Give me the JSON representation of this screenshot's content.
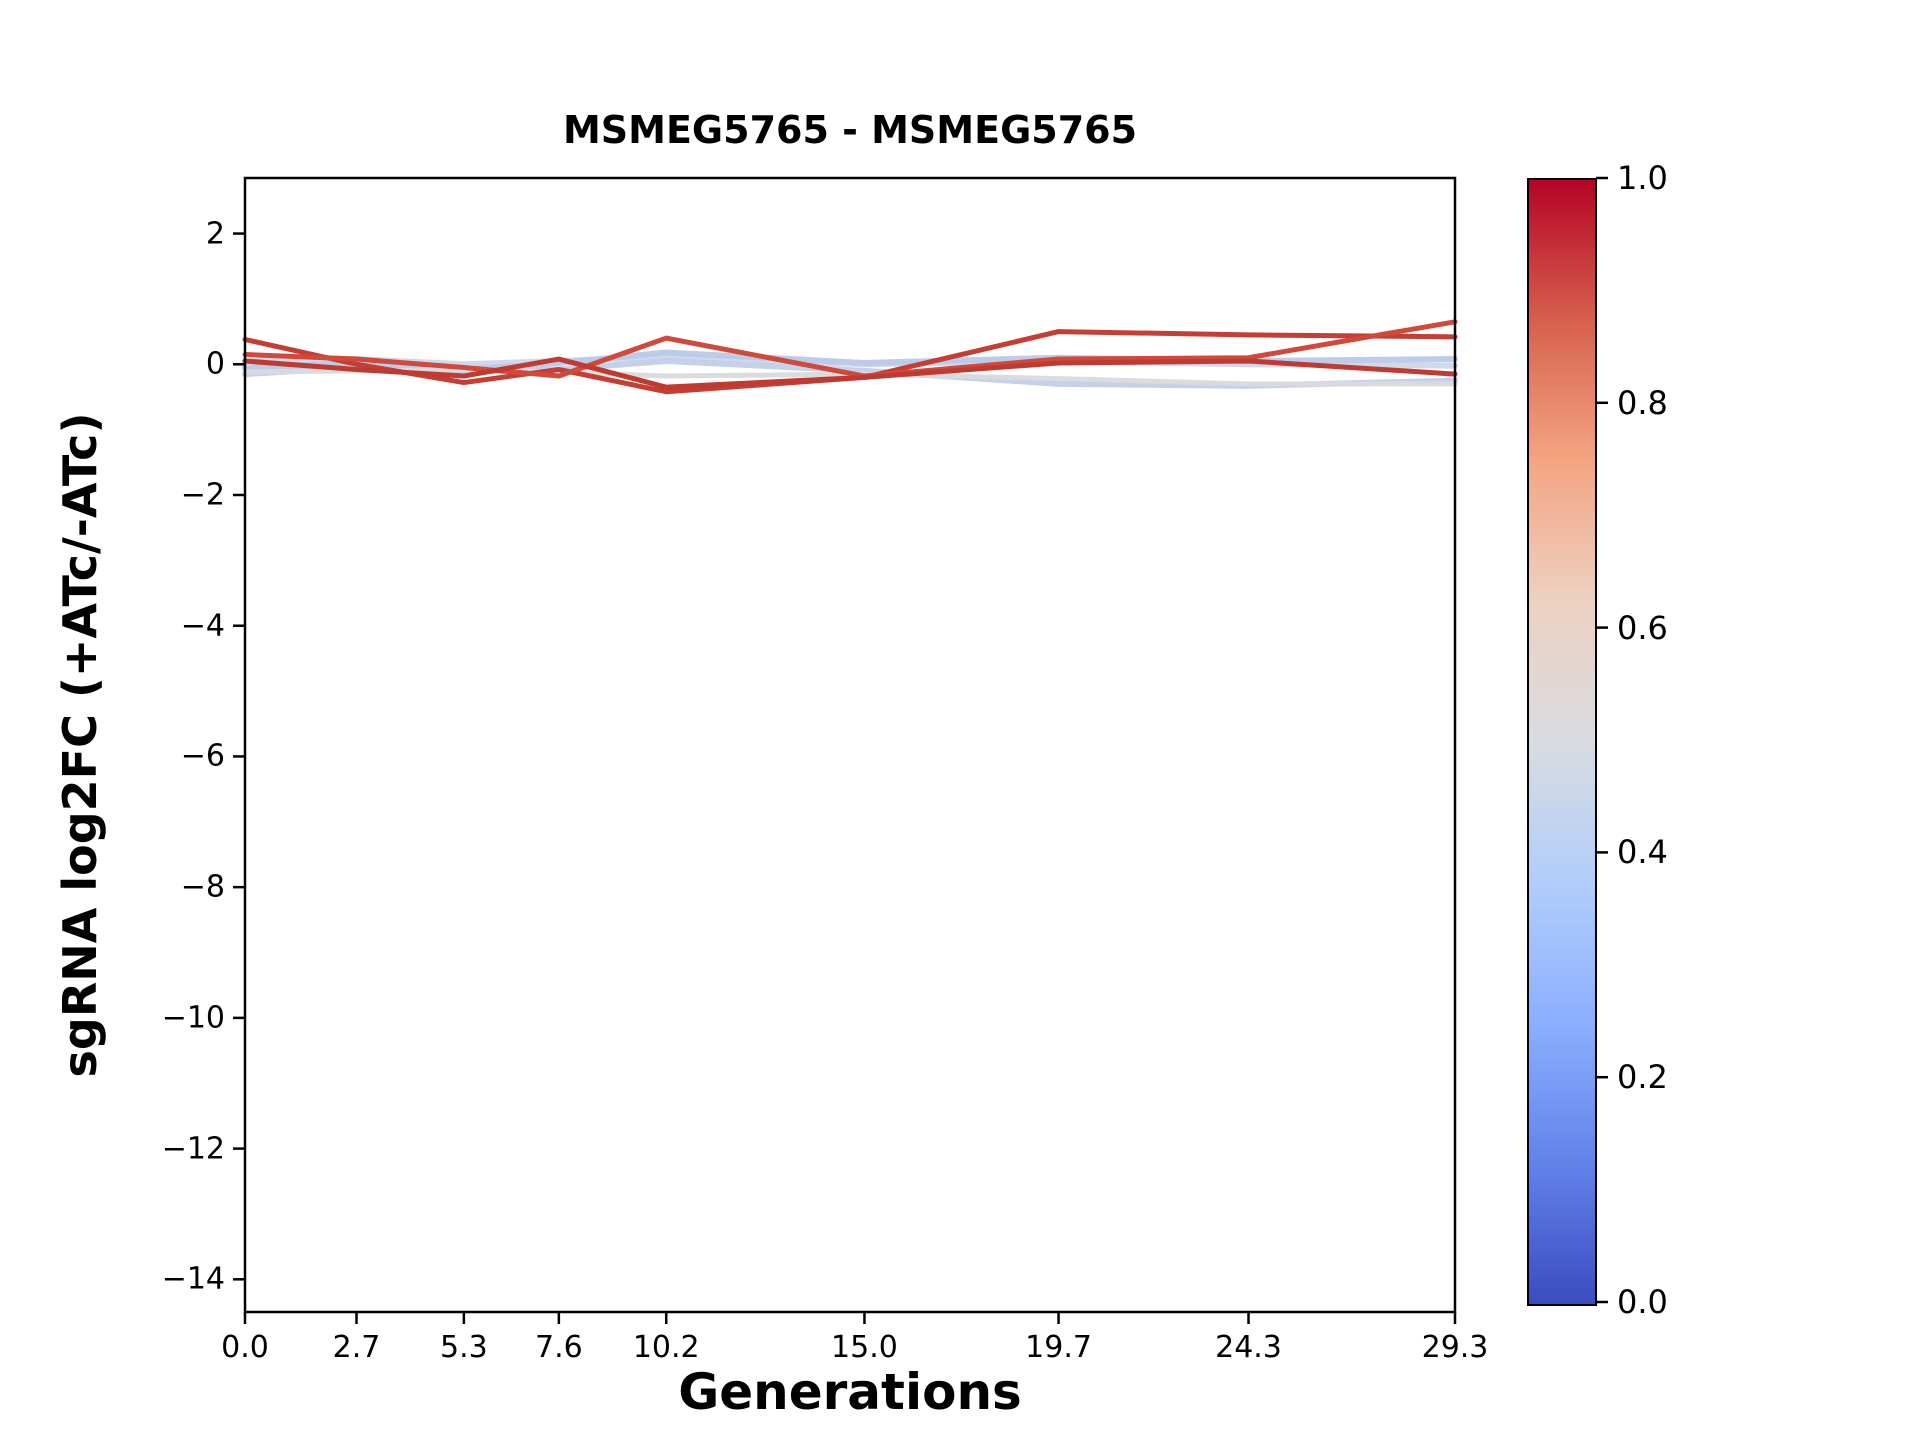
{
  "chart_data": {
    "type": "line",
    "title": "MSMEG5765 - MSMEG5765",
    "xlabel": "Generations",
    "ylabel": "sgRNA log2FC (+ATc/-ATc)",
    "x": [
      0.0,
      2.7,
      5.3,
      7.6,
      10.2,
      15.0,
      19.7,
      24.3,
      29.3
    ],
    "xtick_labels": [
      "0.0",
      "2.7",
      "5.3",
      "7.6",
      "10.2",
      "15.0",
      "19.7",
      "24.3",
      "29.3"
    ],
    "yticks": [
      2,
      0,
      -2,
      -4,
      -6,
      -8,
      -10,
      -12,
      -14
    ],
    "ytick_labels": [
      "2",
      "0",
      "−2",
      "−4",
      "−6",
      "−8",
      "−10",
      "−12",
      "−14"
    ],
    "xlim": [
      0.0,
      29.3
    ],
    "ylim": [
      -14.5,
      2.85
    ],
    "grid": false,
    "legend": "none",
    "series": [
      {
        "name": "sgrna-blue-1",
        "colormap_value": 0.45,
        "color": "#ccd6ec",
        "width": 6,
        "opacity": 0.95,
        "y": [
          0.05,
          0.08,
          0.0,
          0.05,
          0.12,
          0.0,
          0.05,
          0.0,
          -0.02
        ]
      },
      {
        "name": "sgrna-blue-2",
        "colormap_value": 0.42,
        "color": "#c2cfe9",
        "width": 6,
        "opacity": 0.95,
        "y": [
          -0.15,
          -0.05,
          -0.12,
          -0.08,
          0.05,
          -0.1,
          -0.3,
          -0.33,
          -0.25
        ]
      },
      {
        "name": "sgrna-blue-3",
        "colormap_value": 0.4,
        "color": "#b9c9e8",
        "width": 6,
        "opacity": 0.95,
        "y": [
          -0.05,
          0.02,
          -0.08,
          0.02,
          0.18,
          0.02,
          0.1,
          0.05,
          0.08
        ]
      },
      {
        "name": "sgrna-gray",
        "colormap_value": 0.5,
        "color": "#d9dade",
        "width": 5,
        "opacity": 0.95,
        "y": [
          -0.12,
          -0.1,
          -0.08,
          -0.12,
          -0.18,
          -0.15,
          -0.22,
          -0.3,
          -0.3
        ]
      },
      {
        "name": "sgrna-red-1",
        "colormap_value": 0.88,
        "color": "#c63d33",
        "width": 5,
        "opacity": 1,
        "y": [
          0.38,
          0.0,
          -0.28,
          -0.08,
          -0.42,
          -0.2,
          0.5,
          0.45,
          0.42
        ]
      },
      {
        "name": "sgrna-red-2",
        "colormap_value": 0.85,
        "color": "#cf4a3a",
        "width": 5,
        "opacity": 1,
        "y": [
          0.15,
          0.08,
          -0.05,
          -0.18,
          0.4,
          -0.18,
          0.08,
          0.1,
          0.65
        ]
      },
      {
        "name": "sgrna-red-3",
        "colormap_value": 0.9,
        "color": "#bf3a30",
        "width": 5,
        "opacity": 1,
        "y": [
          0.05,
          -0.08,
          -0.18,
          0.08,
          -0.35,
          -0.2,
          0.02,
          0.05,
          -0.15
        ]
      }
    ],
    "colorbar": {
      "ticks": [
        0.0,
        0.2,
        0.4,
        0.6,
        0.8,
        1.0
      ],
      "tick_labels": [
        "0.0",
        "0.2",
        "0.4",
        "0.6",
        "0.8",
        "1.0"
      ],
      "gradient_stops": [
        {
          "pos": 0,
          "color": "#3b4cc0"
        },
        {
          "pos": 12.5,
          "color": "#6282ea"
        },
        {
          "pos": 25,
          "color": "#8caffe"
        },
        {
          "pos": 37.5,
          "color": "#b2cdfb"
        },
        {
          "pos": 50,
          "color": "#d8dce1"
        },
        {
          "pos": 62.5,
          "color": "#edd1c2"
        },
        {
          "pos": 75,
          "color": "#f4a582"
        },
        {
          "pos": 87.5,
          "color": "#d6604d"
        },
        {
          "pos": 100,
          "color": "#b40426"
        }
      ]
    }
  }
}
